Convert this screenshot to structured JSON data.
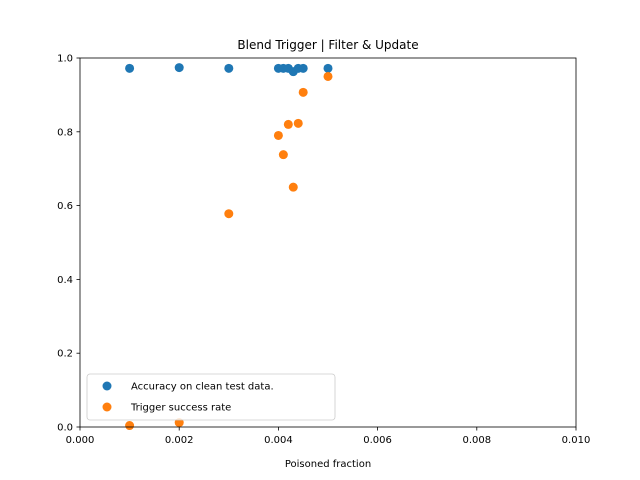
{
  "chart_data": {
    "type": "scatter",
    "title": "Blend Trigger | Filter & Update",
    "xlabel": "Poisoned fraction",
    "ylabel": "",
    "xlim": [
      0,
      0.01
    ],
    "ylim": [
      0,
      1.0
    ],
    "xticks": [
      "0.000",
      "0.002",
      "0.004",
      "0.006",
      "0.008",
      "0.010"
    ],
    "xtick_values": [
      0,
      0.002,
      0.004,
      0.006,
      0.008,
      0.01
    ],
    "yticks": [
      "0.0",
      "0.2",
      "0.4",
      "0.6",
      "0.8",
      "1.0"
    ],
    "ytick_values": [
      0,
      0.2,
      0.4,
      0.6,
      0.8,
      1.0
    ],
    "grid": false,
    "legend_position": "lower-left",
    "series": [
      {
        "name": "Accuracy on clean test data.",
        "color": "#1f77b4",
        "x": [
          0.001,
          0.002,
          0.003,
          0.004,
          0.0041,
          0.0042,
          0.0043,
          0.0044,
          0.0045,
          0.005
        ],
        "y": [
          0.972,
          0.974,
          0.972,
          0.972,
          0.972,
          0.972,
          0.963,
          0.972,
          0.972,
          0.972
        ]
      },
      {
        "name": "Trigger success rate",
        "color": "#ff7f0e",
        "x": [
          0.001,
          0.002,
          0.003,
          0.004,
          0.0041,
          0.0042,
          0.0043,
          0.0044,
          0.0045,
          0.005
        ],
        "y": [
          0.004,
          0.012,
          0.578,
          0.79,
          0.738,
          0.82,
          0.65,
          0.823,
          0.907,
          0.95
        ]
      }
    ]
  }
}
